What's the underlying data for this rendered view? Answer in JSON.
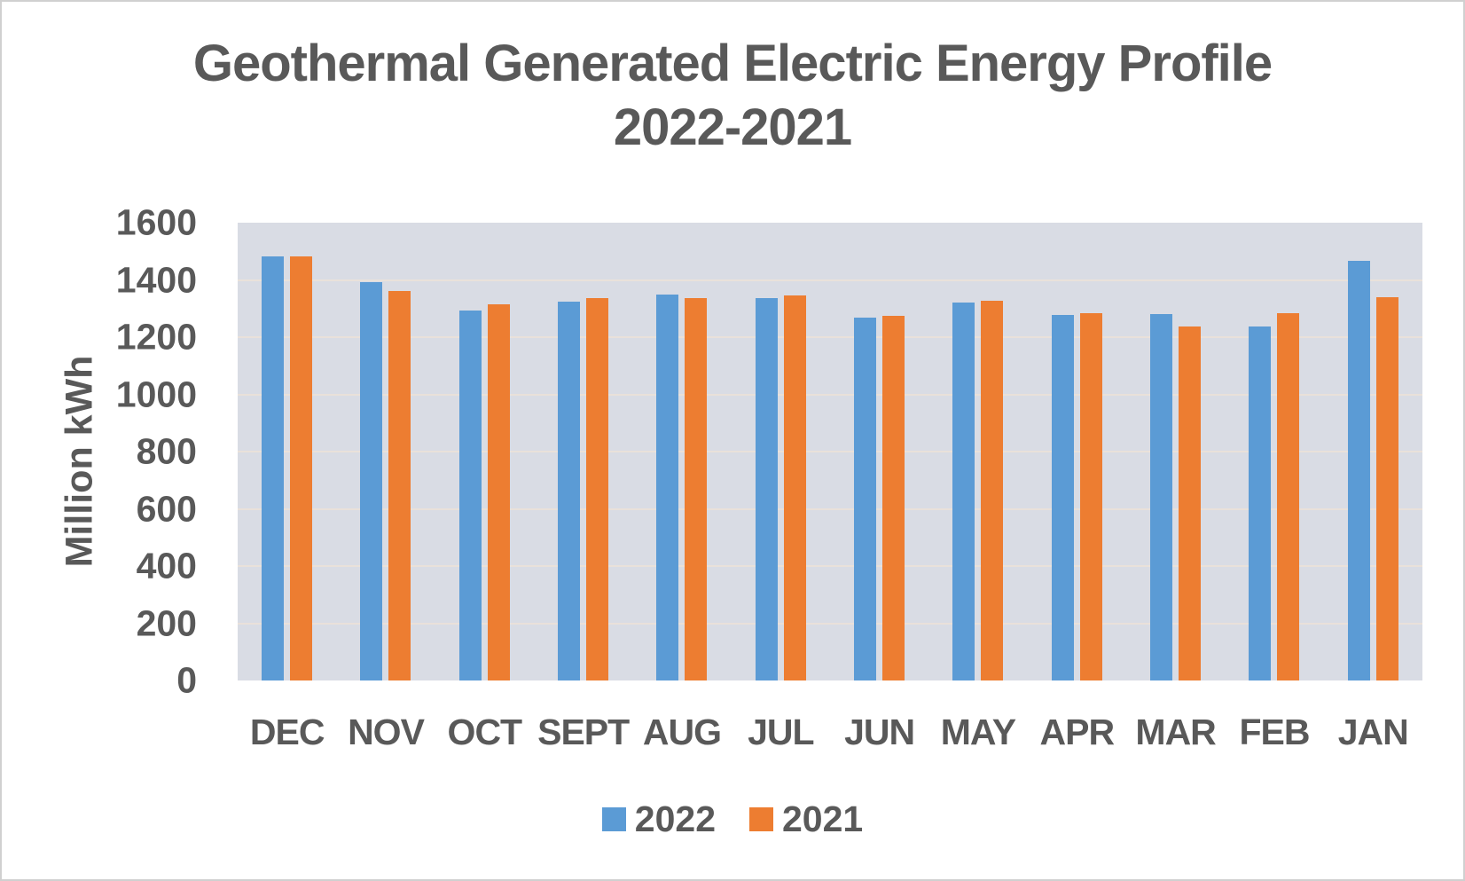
{
  "page": {
    "title_line1": "Geothermal Generated Electric Energy Profile",
    "title_line2": "2022-2021"
  },
  "colors": {
    "series_2022": "#5b9bd5",
    "series_2021": "#ed7d31",
    "plot_background": "#d9dce4",
    "gridline": "#e9e1da",
    "text": "#595959",
    "canvas_border": "#d0d0d0"
  },
  "chart_data": {
    "type": "bar",
    "title": "Geothermal Generated Electric Energy Profile 2022-2021",
    "xlabel": "",
    "ylabel": "Million kWh",
    "ylim": [
      0,
      1600
    ],
    "yticks": [
      0,
      200,
      400,
      600,
      800,
      1000,
      1200,
      1400,
      1600
    ],
    "grid": true,
    "legend_position": "bottom",
    "categories": [
      "DEC",
      "NOV",
      "OCT",
      "SEPT",
      "AUG",
      "JUL",
      "JUN",
      "MAY",
      "APR",
      "MAR",
      "FEB",
      "JAN"
    ],
    "series": [
      {
        "name": "2022",
        "color": "#5b9bd5",
        "values": [
          1481,
          1393,
          1292,
          1323,
          1349,
          1335,
          1269,
          1321,
          1277,
          1280,
          1237,
          1467
        ]
      },
      {
        "name": "2021",
        "color": "#ed7d31",
        "values": [
          1481,
          1362,
          1314,
          1337,
          1335,
          1345,
          1274,
          1328,
          1283,
          1238,
          1283,
          1340
        ]
      }
    ]
  }
}
